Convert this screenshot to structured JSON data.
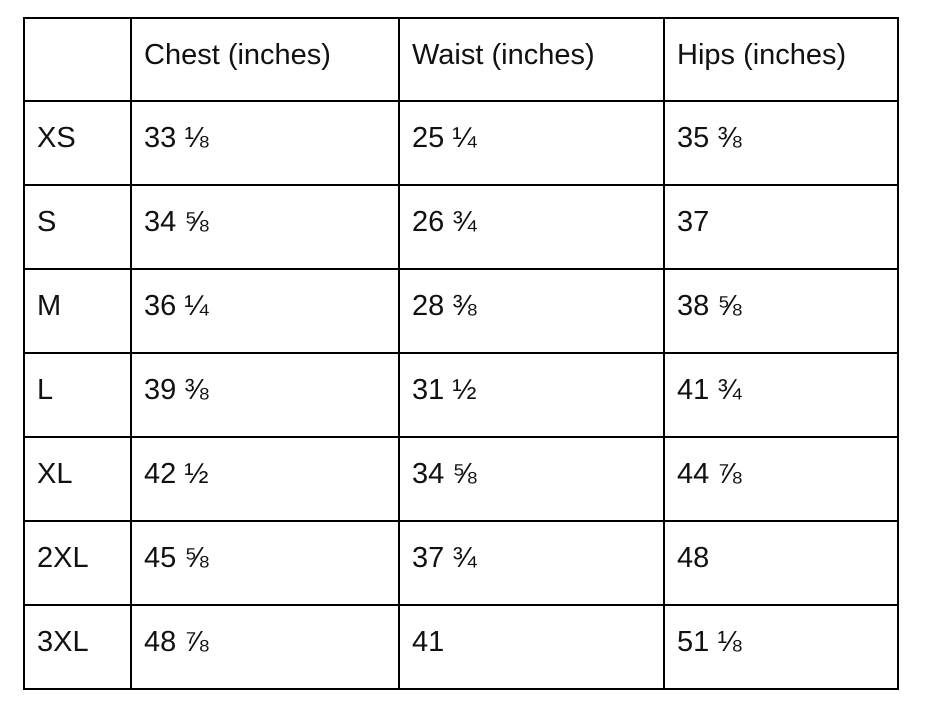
{
  "page": {
    "background_color": "#ffffff",
    "border_color": "#000000",
    "text_color": "#111111"
  },
  "table": {
    "headers": {
      "size": "",
      "chest": "Chest (inches)",
      "waist": "Waist (inches)",
      "hips": "Hips (inches)"
    },
    "rows": [
      {
        "size": "XS",
        "chest": "33 ⅛",
        "waist": "25 ¼",
        "hips": "35 ⅜"
      },
      {
        "size": "S",
        "chest": "34 ⅝",
        "waist": "26 ¾",
        "hips": "37"
      },
      {
        "size": "M",
        "chest": "36 ¼",
        "waist": "28 ⅜",
        "hips": "38 ⅝"
      },
      {
        "size": "L",
        "chest": "39 ⅜",
        "waist": "31 ½",
        "hips": "41 ¾"
      },
      {
        "size": "XL",
        "chest": "42 ½",
        "waist": "34 ⅝",
        "hips": "44 ⅞"
      },
      {
        "size": "2XL",
        "chest": "45 ⅝",
        "waist": "37 ¾",
        "hips": "48"
      },
      {
        "size": "3XL",
        "chest": "48 ⅞",
        "waist": "41",
        "hips": "51 ⅛"
      }
    ]
  }
}
